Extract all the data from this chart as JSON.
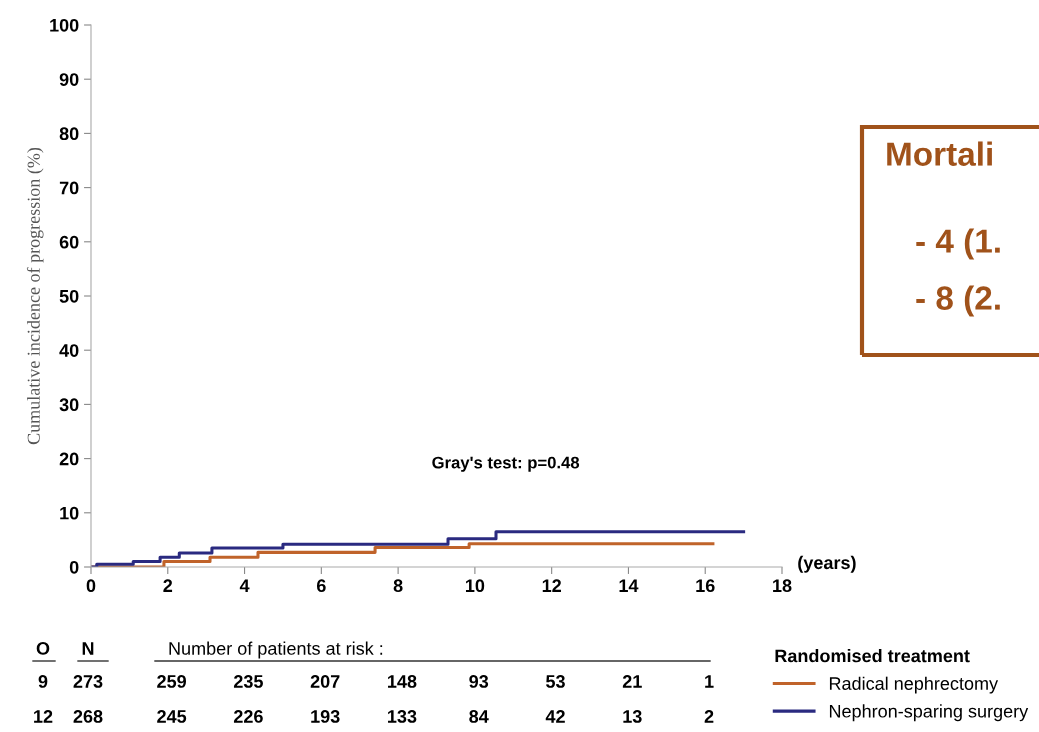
{
  "chart_data": {
    "type": "step",
    "ylabel": "Cumulative incidence of progression (%)",
    "xlabel": "(years)",
    "legend_title": "Randomised treatment",
    "legend": "bottom right",
    "grid": false,
    "marker": "none",
    "line_style": "solid",
    "xlim": [
      0,
      18
    ],
    "xticks": [
      0,
      2,
      4,
      6,
      8,
      10,
      12,
      14,
      16,
      18
    ],
    "ylim": [
      0,
      100
    ],
    "yticks": [
      0,
      10,
      20,
      30,
      40,
      50,
      60,
      70,
      80,
      90,
      100
    ],
    "series": [
      {
        "name": "Radical nephrectomy",
        "color": "#c0632a",
        "x": [
          0,
          1.9,
          3.1,
          4.35,
          7.4,
          9.85,
          16.2
        ],
        "values": [
          0,
          1.0,
          1.8,
          2.7,
          3.6,
          4.3,
          4.3
        ]
      },
      {
        "name": "Nephron-sparing surgery",
        "color": "#2a2a80",
        "x": [
          0,
          0.15,
          1.1,
          1.8,
          2.3,
          3.15,
          5.0,
          9.3,
          10.55,
          17.0
        ],
        "values": [
          0,
          0.5,
          1.0,
          1.8,
          2.6,
          3.5,
          4.2,
          5.2,
          6.5,
          6.5
        ]
      }
    ],
    "annotations": [
      "Gray's test: p=0.48",
      "Mortali",
      "- 4 (1.",
      "- 8 (2.",
      "O",
      "N",
      "Number of patients at risk :",
      "9",
      "273",
      "259",
      "235",
      "207",
      "148",
      "93",
      "53",
      "21",
      "1",
      "12",
      "268",
      "245",
      "226",
      "193",
      "133",
      "84",
      "42",
      "13",
      "2"
    ]
  }
}
